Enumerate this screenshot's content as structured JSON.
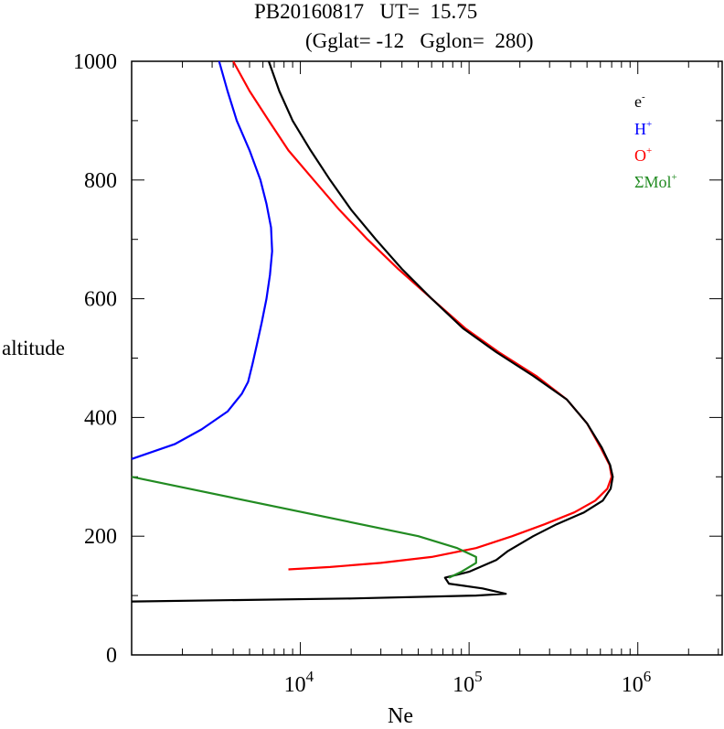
{
  "chart_data": {
    "type": "line",
    "title_line1": "PB20160817   UT=  15.75",
    "title_line2": "(Gglat= -12   Gglon=  280)",
    "xlabel": "Ne",
    "ylabel": "altitude",
    "xscale": "log",
    "xlim": [
      1000,
      3162278
    ],
    "ylim": [
      0,
      1000
    ],
    "yticks": [
      {
        "value": 0,
        "label": "0"
      },
      {
        "value": 200,
        "label": "200"
      },
      {
        "value": 400,
        "label": "400"
      },
      {
        "value": 600,
        "label": "600"
      },
      {
        "value": 800,
        "label": "800"
      },
      {
        "value": 1000,
        "label": "1000"
      }
    ],
    "xticks": [
      {
        "value": 10000,
        "base": "10",
        "exp": "4"
      },
      {
        "value": 100000,
        "base": "10",
        "exp": "5"
      },
      {
        "value": 1000000,
        "base": "10",
        "exp": "6"
      }
    ],
    "series": [
      {
        "name": "H",
        "sup": "+",
        "color": "#0000ff",
        "points": [
          [
            3300,
            1000
          ],
          [
            3700,
            950
          ],
          [
            4200,
            900
          ],
          [
            5000,
            850
          ],
          [
            5800,
            800
          ],
          [
            6300,
            760
          ],
          [
            6700,
            720
          ],
          [
            6800,
            680
          ],
          [
            6600,
            640
          ],
          [
            6300,
            600
          ],
          [
            5900,
            560
          ],
          [
            5500,
            520
          ],
          [
            5200,
            490
          ],
          [
            4900,
            460
          ],
          [
            4500,
            440
          ],
          [
            3700,
            410
          ],
          [
            2600,
            380
          ],
          [
            1800,
            355
          ],
          [
            1000,
            330
          ]
        ]
      },
      {
        "name": "O",
        "sup": "+",
        "color": "#ff0000",
        "points": [
          [
            4000,
            1000
          ],
          [
            5000,
            950
          ],
          [
            6500,
            900
          ],
          [
            8500,
            850
          ],
          [
            12000,
            800
          ],
          [
            17000,
            750
          ],
          [
            25000,
            700
          ],
          [
            38000,
            650
          ],
          [
            60000,
            600
          ],
          [
            95000,
            550
          ],
          [
            150000,
            510
          ],
          [
            250000,
            470
          ],
          [
            380000,
            430
          ],
          [
            500000,
            390
          ],
          [
            600000,
            350
          ],
          [
            680000,
            320
          ],
          [
            700000,
            300
          ],
          [
            660000,
            280
          ],
          [
            560000,
            260
          ],
          [
            420000,
            240
          ],
          [
            280000,
            220
          ],
          [
            180000,
            200
          ],
          [
            110000,
            180
          ],
          [
            60000,
            165
          ],
          [
            30000,
            155
          ],
          [
            15000,
            148
          ],
          [
            8500,
            144
          ]
        ]
      },
      {
        "name": "e",
        "sup": "-",
        "color": "#000000",
        "points": [
          [
            6500,
            1000
          ],
          [
            7500,
            950
          ],
          [
            9000,
            900
          ],
          [
            11500,
            850
          ],
          [
            15000,
            800
          ],
          [
            20000,
            750
          ],
          [
            28000,
            700
          ],
          [
            40000,
            650
          ],
          [
            60000,
            600
          ],
          [
            92000,
            550
          ],
          [
            145000,
            510
          ],
          [
            240000,
            470
          ],
          [
            380000,
            430
          ],
          [
            500000,
            390
          ],
          [
            610000,
            350
          ],
          [
            685000,
            320
          ],
          [
            710000,
            300
          ],
          [
            690000,
            280
          ],
          [
            620000,
            260
          ],
          [
            480000,
            240
          ],
          [
            330000,
            220
          ],
          [
            240000,
            200
          ],
          [
            170000,
            175
          ],
          [
            145000,
            160
          ],
          [
            100000,
            140
          ],
          [
            72000,
            130
          ],
          [
            76000,
            120
          ],
          [
            120000,
            112
          ],
          [
            165000,
            103
          ],
          [
            110000,
            100
          ],
          [
            20000,
            95
          ],
          [
            1000,
            90
          ]
        ]
      },
      {
        "name": "ΣMol",
        "sup": "+",
        "color": "#228b22",
        "points": [
          [
            1000,
            300
          ],
          [
            50000,
            200
          ],
          [
            85000,
            180
          ],
          [
            110000,
            165
          ],
          [
            110000,
            155
          ],
          [
            90000,
            140
          ],
          [
            76000,
            130
          ]
        ]
      }
    ]
  }
}
